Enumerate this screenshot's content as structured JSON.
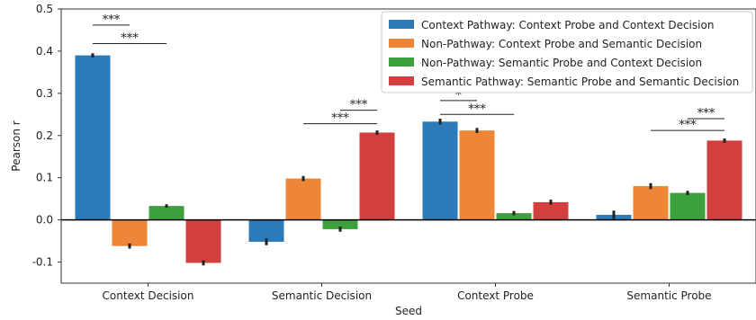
{
  "chart_data": {
    "type": "bar",
    "xlabel": "Seed",
    "ylabel": "Pearson r",
    "ylim": [
      -0.15,
      0.5
    ],
    "yticks": [
      -0.1,
      0.0,
      0.1,
      0.2,
      0.3,
      0.4,
      0.5
    ],
    "ytick_labels": [
      "-0.1",
      "0.0",
      "0.1",
      "0.2",
      "0.3",
      "0.4",
      "0.5"
    ],
    "categories": [
      "Context Decision",
      "Semantic Decision",
      "Context Probe",
      "Semantic Probe"
    ],
    "grid": false,
    "legend_position": "top-right",
    "series": [
      {
        "name": "Context Pathway: Context Probe and Context Decision",
        "color": "#2b7bba",
        "values": [
          0.39,
          -0.052,
          0.233,
          0.012
        ],
        "errors": [
          0.005,
          0.008,
          0.007,
          0.01
        ]
      },
      {
        "name": "Non-Pathway: Context Probe and Semantic Decision",
        "color": "#ef8536",
        "values": [
          -0.062,
          0.098,
          0.212,
          0.08
        ],
        "errors": [
          0.006,
          0.006,
          0.006,
          0.007
        ]
      },
      {
        "name": "Non-Pathway: Semantic Probe and Context Decision",
        "color": "#3ca03c",
        "values": [
          0.033,
          -0.022,
          0.016,
          0.064
        ],
        "errors": [
          0.004,
          0.006,
          0.005,
          0.005
        ]
      },
      {
        "name": "Semantic Pathway: Semantic Probe and Semantic Decision",
        "color": "#d33f3f",
        "values": [
          -0.102,
          0.207,
          0.042,
          0.188
        ],
        "errors": [
          0.006,
          0.005,
          0.006,
          0.005
        ]
      }
    ],
    "significance": [
      {
        "category": 0,
        "from": 0,
        "to": 1,
        "label": "***",
        "y": 0.462
      },
      {
        "category": 0,
        "from": 0,
        "to": 2,
        "label": "***",
        "y": 0.418
      },
      {
        "category": 1,
        "from": 2,
        "to": 3,
        "label": "***",
        "y": 0.26
      },
      {
        "category": 1,
        "from": 1,
        "to": 3,
        "label": "***",
        "y": 0.228
      },
      {
        "category": 2,
        "from": 0,
        "to": 1,
        "label": "*",
        "y": 0.283
      },
      {
        "category": 2,
        "from": 0,
        "to": 2,
        "label": "***",
        "y": 0.25
      },
      {
        "category": 3,
        "from": 2,
        "to": 3,
        "label": "***",
        "y": 0.24
      },
      {
        "category": 3,
        "from": 1,
        "to": 3,
        "label": "***",
        "y": 0.212
      }
    ]
  }
}
